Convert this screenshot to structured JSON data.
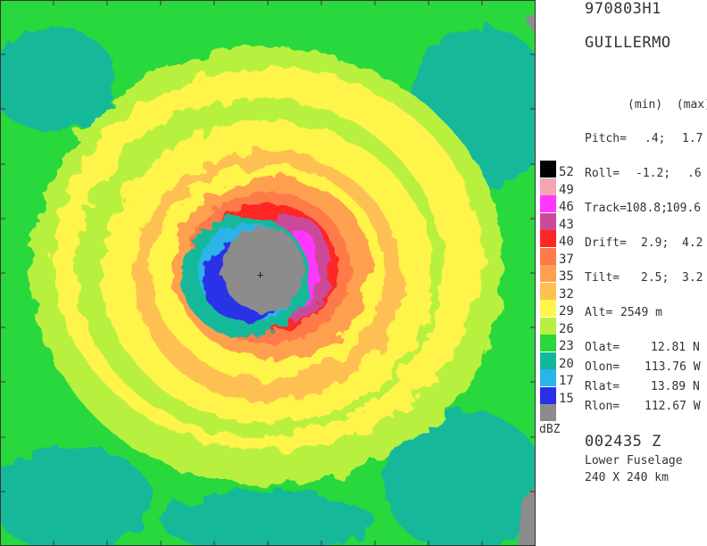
{
  "header": {
    "flight_id": "970803H1",
    "storm_name": "GUILLERMO"
  },
  "parameters": {
    "minmax_header": "(min)  (max)",
    "pitch": {
      "label": "Pitch=",
      "min": ".4;",
      "max": "1.7"
    },
    "roll": {
      "label": "Roll=",
      "min": "-1.2;",
      "max": ".6"
    },
    "track": {
      "label": "Track=",
      "min": "108.8;",
      "max": "109.6"
    },
    "drift": {
      "label": "Drift=",
      "min": "2.9;",
      "max": "4.2"
    },
    "tilt": {
      "label": "Tilt=",
      "min": "2.5;",
      "max": "3.2"
    },
    "alt": {
      "label": "Alt=",
      "value": "2549 m"
    }
  },
  "position": {
    "olat": {
      "label": "Olat=",
      "value": "12.81 N"
    },
    "olon": {
      "label": "Olon=",
      "value": "113.76 W"
    },
    "rlat": {
      "label": "Rlat=",
      "value": "13.89 N"
    },
    "rlon": {
      "label": "Rlon=",
      "value": "112.67 W"
    }
  },
  "footer": {
    "time": "002435 Z",
    "radar": "Lower Fuselage",
    "domain": "240 X 240 km"
  },
  "legend": {
    "unit": "dBZ",
    "entries": [
      {
        "label": "52",
        "color": "#000000"
      },
      {
        "label": "49",
        "color": "#f4a6b2"
      },
      {
        "label": "46",
        "color": "#ff38ff"
      },
      {
        "label": "43",
        "color": "#cc4a9a"
      },
      {
        "label": "40",
        "color": "#ff2626"
      },
      {
        "label": "37",
        "color": "#ff7a4a"
      },
      {
        "label": "35",
        "color": "#ffa050"
      },
      {
        "label": "32",
        "color": "#ffc052"
      },
      {
        "label": "29",
        "color": "#fff44a"
      },
      {
        "label": "26",
        "color": "#b8f040"
      },
      {
        "label": "23",
        "color": "#28d83c"
      },
      {
        "label": "20",
        "color": "#12b89a"
      },
      {
        "label": "17",
        "color": "#2ab4e8"
      },
      {
        "label": "15",
        "color": "#2a30e8"
      },
      {
        "label": "",
        "color": "#8c8c8c"
      }
    ]
  }
}
